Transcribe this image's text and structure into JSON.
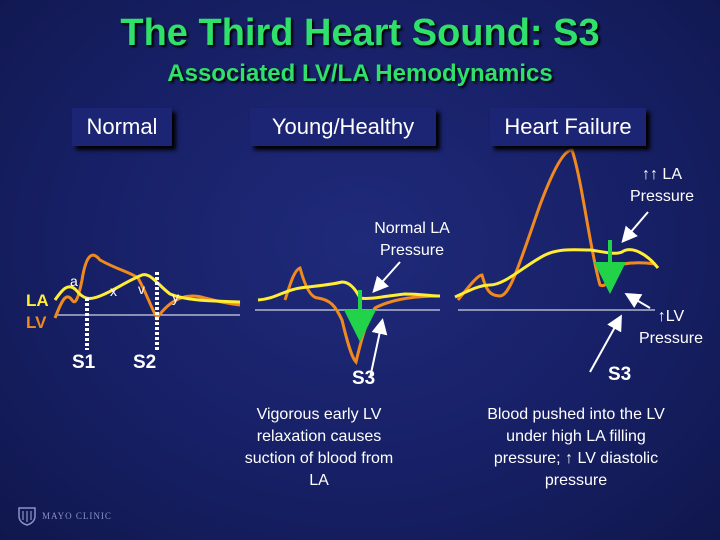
{
  "title": "The Third Heart Sound:  S3",
  "subtitle": "Associated LV/LA Hemodynamics",
  "headers": {
    "normal": "Normal",
    "young": "Young/Healthy",
    "failure": "Heart Failure"
  },
  "normal_panel": {
    "la": "LA",
    "lv": "LV",
    "wave_a": "a",
    "wave_x": "x",
    "wave_v": "v",
    "wave_y": "y",
    "s1": "S1",
    "s2": "S2"
  },
  "young_panel": {
    "pressure_note": "Normal LA Pressure",
    "s3": "S3",
    "caption": "Vigorous early LV relaxation causes suction of blood from LA"
  },
  "failure_panel": {
    "la_pressure": "↑↑ LA Pressure",
    "lv_pressure": "↑LV Pressure",
    "s3": "S3",
    "caption": "Blood pushed into the LV under high LA filling pressure; ↑ LV diastolic pressure"
  },
  "logo": "MAYO CLINIC",
  "colors": {
    "title": "#2fe06a",
    "la_curve": "#ffee33",
    "lv_curve": "#f08a1e",
    "arrow": "#22d34a",
    "baseline": "#ffffff"
  }
}
